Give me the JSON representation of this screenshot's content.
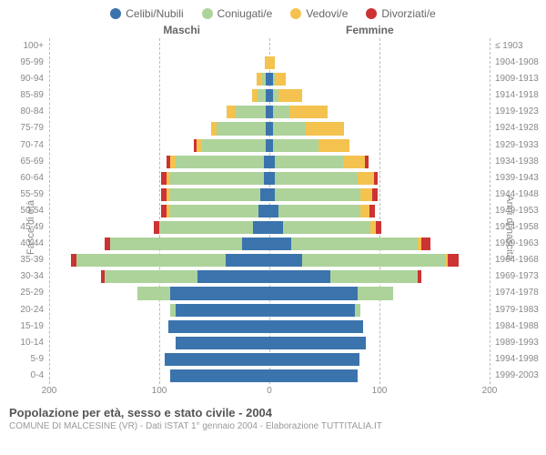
{
  "legend": {
    "items": [
      {
        "label": "Celibi/Nubili",
        "color": "#3b74ad"
      },
      {
        "label": "Coniugati/e",
        "color": "#add39b"
      },
      {
        "label": "Vedovi/e",
        "color": "#f4c24e"
      },
      {
        "label": "Divorziati/e",
        "color": "#cc3333"
      }
    ]
  },
  "headers": {
    "left": "Maschi",
    "right": "Femmine",
    "right_axis_top": "≤ 1903"
  },
  "axis_labels": {
    "left": "Fasce di età",
    "right": "Anni di nascita"
  },
  "chart": {
    "type": "population-pyramid",
    "xmax": 200,
    "xticks": [
      200,
      100,
      0,
      100,
      200
    ],
    "background": "#ffffff",
    "grid_color": "#bbbbbb",
    "rows": [
      {
        "age": "100+",
        "year": "≤ 1903",
        "m": [
          0,
          0,
          0,
          0
        ],
        "f": [
          0,
          0,
          0,
          0
        ]
      },
      {
        "age": "95-99",
        "year": "1904-1908",
        "m": [
          0,
          0,
          4,
          0
        ],
        "f": [
          0,
          0,
          5,
          0
        ]
      },
      {
        "age": "90-94",
        "year": "1909-1913",
        "m": [
          3,
          4,
          5,
          0
        ],
        "f": [
          3,
          2,
          10,
          0
        ]
      },
      {
        "age": "85-89",
        "year": "1914-1918",
        "m": [
          3,
          8,
          5,
          0
        ],
        "f": [
          3,
          5,
          22,
          0
        ]
      },
      {
        "age": "80-84",
        "year": "1919-1923",
        "m": [
          3,
          28,
          8,
          0
        ],
        "f": [
          3,
          15,
          35,
          0
        ]
      },
      {
        "age": "75-79",
        "year": "1924-1928",
        "m": [
          3,
          45,
          5,
          0
        ],
        "f": [
          3,
          30,
          35,
          0
        ]
      },
      {
        "age": "70-74",
        "year": "1929-1933",
        "m": [
          3,
          58,
          5,
          3
        ],
        "f": [
          3,
          42,
          28,
          0
        ]
      },
      {
        "age": "65-69",
        "year": "1934-1938",
        "m": [
          5,
          80,
          5,
          3
        ],
        "f": [
          5,
          62,
          20,
          3
        ]
      },
      {
        "age": "60-64",
        "year": "1939-1943",
        "m": [
          5,
          85,
          3,
          5
        ],
        "f": [
          5,
          75,
          15,
          3
        ]
      },
      {
        "age": "55-59",
        "year": "1944-1948",
        "m": [
          8,
          82,
          3,
          5
        ],
        "f": [
          5,
          78,
          10,
          5
        ]
      },
      {
        "age": "50-54",
        "year": "1949-1953",
        "m": [
          10,
          80,
          3,
          5
        ],
        "f": [
          8,
          75,
          8,
          5
        ]
      },
      {
        "age": "45-49",
        "year": "1954-1958",
        "m": [
          15,
          85,
          0,
          5
        ],
        "f": [
          12,
          80,
          5,
          5
        ]
      },
      {
        "age": "40-44",
        "year": "1959-1963",
        "m": [
          25,
          120,
          0,
          5
        ],
        "f": [
          20,
          115,
          3,
          8
        ]
      },
      {
        "age": "35-39",
        "year": "1964-1968",
        "m": [
          40,
          135,
          0,
          5
        ],
        "f": [
          30,
          130,
          2,
          10
        ]
      },
      {
        "age": "30-34",
        "year": "1969-1973",
        "m": [
          65,
          85,
          0,
          3
        ],
        "f": [
          55,
          80,
          0,
          3
        ]
      },
      {
        "age": "25-29",
        "year": "1974-1978",
        "m": [
          90,
          30,
          0,
          0
        ],
        "f": [
          80,
          32,
          0,
          0
        ]
      },
      {
        "age": "20-24",
        "year": "1979-1983",
        "m": [
          85,
          5,
          0,
          0
        ],
        "f": [
          78,
          5,
          0,
          0
        ]
      },
      {
        "age": "15-19",
        "year": "1984-1988",
        "m": [
          92,
          0,
          0,
          0
        ],
        "f": [
          85,
          0,
          0,
          0
        ]
      },
      {
        "age": "10-14",
        "year": "1989-1993",
        "m": [
          85,
          0,
          0,
          0
        ],
        "f": [
          88,
          0,
          0,
          0
        ]
      },
      {
        "age": "5-9",
        "year": "1994-1998",
        "m": [
          95,
          0,
          0,
          0
        ],
        "f": [
          82,
          0,
          0,
          0
        ]
      },
      {
        "age": "0-4",
        "year": "1999-2003",
        "m": [
          90,
          0,
          0,
          0
        ],
        "f": [
          80,
          0,
          0,
          0
        ]
      }
    ]
  },
  "footer": {
    "title": "Popolazione per età, sesso e stato civile - 2004",
    "subtitle": "COMUNE DI MALCESINE (VR) - Dati ISTAT 1° gennaio 2004 - Elaborazione TUTTITALIA.IT"
  }
}
